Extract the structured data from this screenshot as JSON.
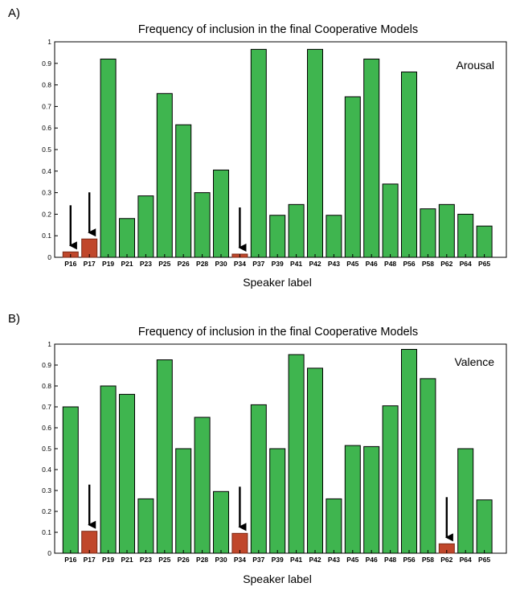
{
  "chart_data": [
    {
      "panel_label": "A)",
      "type": "bar",
      "title": "Frequency of inclusion in the final Cooperative Models",
      "xlabel": "Speaker label",
      "ylabel": "",
      "annotation": "Arousal",
      "ylim": [
        0,
        1
      ],
      "yticks": [
        "0",
        "0.1",
        "0.2",
        "0.3",
        "0.4",
        "0.5",
        "0.6",
        "0.7",
        "0.8",
        "0.9",
        "1"
      ],
      "grid": false,
      "categories": [
        "P16",
        "P17",
        "P19",
        "P21",
        "P23",
        "P25",
        "P26",
        "P28",
        "P30",
        "P34",
        "P37",
        "P39",
        "P41",
        "P42",
        "P43",
        "P45",
        "P46",
        "P48",
        "P56",
        "P58",
        "P62",
        "P64",
        "P65"
      ],
      "values": [
        0.025,
        0.085,
        0.92,
        0.18,
        0.285,
        0.76,
        0.615,
        0.3,
        0.405,
        0.015,
        0.965,
        0.195,
        0.245,
        0.965,
        0.195,
        0.745,
        0.92,
        0.34,
        0.86,
        0.225,
        0.245,
        0.2,
        0.145
      ],
      "bar_colors": [
        "#c0472b",
        "#c0472b",
        "#3fb54f",
        "#3fb54f",
        "#3fb54f",
        "#3fb54f",
        "#3fb54f",
        "#3fb54f",
        "#3fb54f",
        "#c0472b",
        "#3fb54f",
        "#3fb54f",
        "#3fb54f",
        "#3fb54f",
        "#3fb54f",
        "#3fb54f",
        "#3fb54f",
        "#3fb54f",
        "#3fb54f",
        "#3fb54f",
        "#3fb54f",
        "#3fb54f",
        "#3fb54f"
      ],
      "arrows_on": [
        "P16",
        "P17",
        "P34"
      ]
    },
    {
      "panel_label": "B)",
      "type": "bar",
      "title": "Frequency of inclusion in the final Cooperative Models",
      "xlabel": "Speaker label",
      "ylabel": "",
      "annotation": "Valence",
      "ylim": [
        0,
        1
      ],
      "yticks": [
        "0",
        "0.1",
        "0.2",
        "0.3",
        "0.4",
        "0.5",
        "0.6",
        "0.7",
        "0.8",
        "0.9",
        "1"
      ],
      "grid": false,
      "categories": [
        "P16",
        "P17",
        "P19",
        "P21",
        "P23",
        "P25",
        "P26",
        "P28",
        "P30",
        "P34",
        "P37",
        "P39",
        "P41",
        "P42",
        "P43",
        "P45",
        "P46",
        "P48",
        "P56",
        "P58",
        "P62",
        "P64",
        "P65"
      ],
      "values": [
        0.7,
        0.105,
        0.8,
        0.76,
        0.26,
        0.925,
        0.5,
        0.65,
        0.295,
        0.095,
        0.71,
        0.5,
        0.95,
        0.885,
        0.26,
        0.515,
        0.51,
        0.705,
        0.975,
        0.835,
        0.045,
        0.5,
        0.255
      ],
      "bar_colors": [
        "#3fb54f",
        "#c0472b",
        "#3fb54f",
        "#3fb54f",
        "#3fb54f",
        "#3fb54f",
        "#3fb54f",
        "#3fb54f",
        "#3fb54f",
        "#c0472b",
        "#3fb54f",
        "#3fb54f",
        "#3fb54f",
        "#3fb54f",
        "#3fb54f",
        "#3fb54f",
        "#3fb54f",
        "#3fb54f",
        "#3fb54f",
        "#3fb54f",
        "#c0472b",
        "#3fb54f",
        "#3fb54f"
      ],
      "arrows_on": [
        "P17",
        "P34",
        "P62"
      ]
    }
  ]
}
